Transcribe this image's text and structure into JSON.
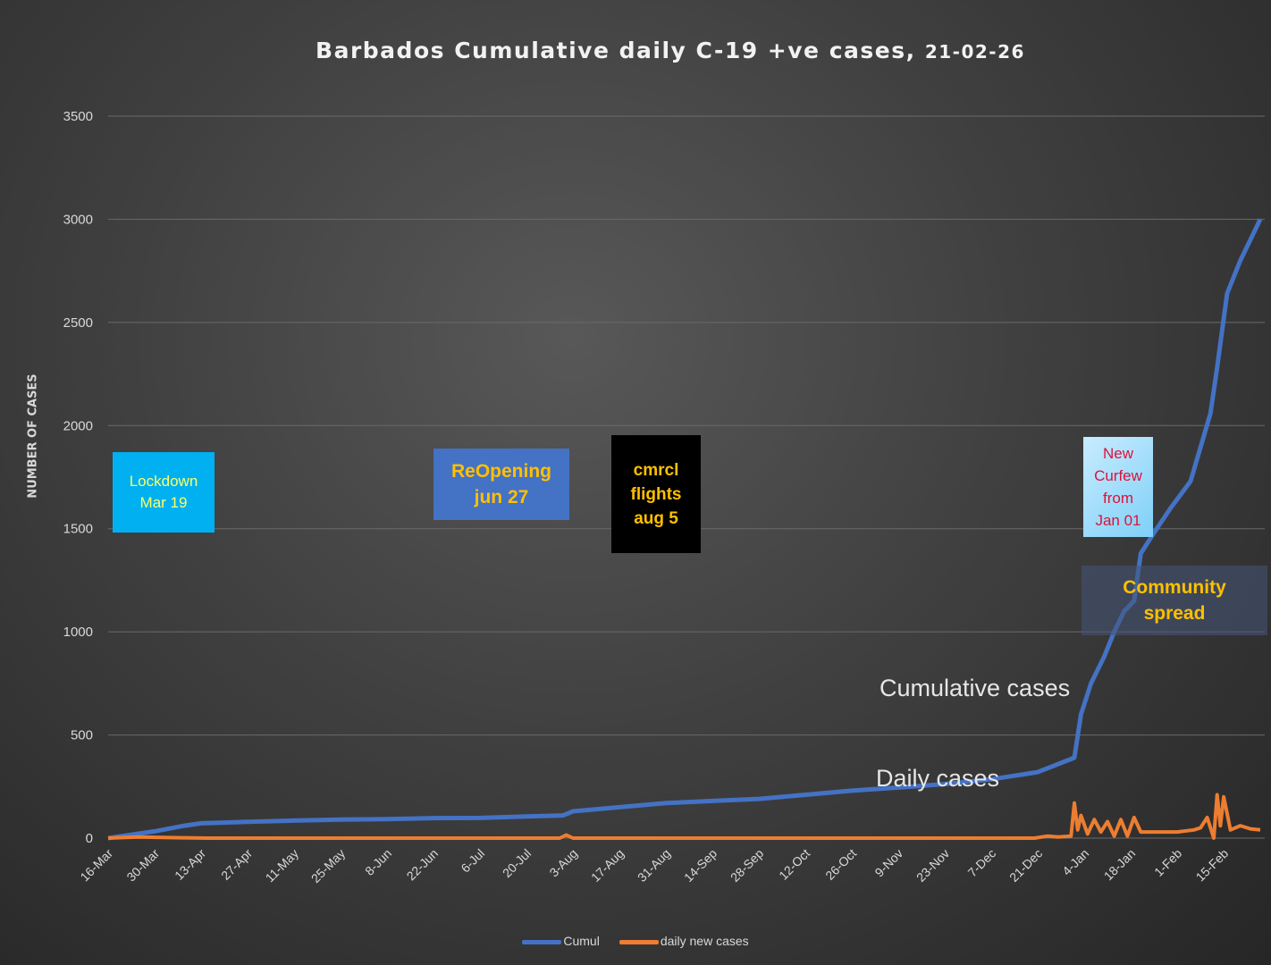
{
  "chart_data": {
    "type": "line",
    "title": "Barbados Cumulative daily C-19 +ve  cases,",
    "title_date": "21-02-26",
    "ylabel": "NUMBER OF CASES",
    "xlabel": "",
    "ylim": [
      0,
      3500
    ],
    "yticks": [
      0,
      500,
      1000,
      1500,
      2000,
      2500,
      3000,
      3500
    ],
    "xlim": [
      "2020-03-16",
      "2021-02-26"
    ],
    "xtick_labels": [
      "16-Mar",
      "30-Mar",
      "13-Apr",
      "27-Apr",
      "11-May",
      "25-May",
      "8-Jun",
      "22-Jun",
      "6-Jul",
      "20-Jul",
      "3-Aug",
      "17-Aug",
      "31-Aug",
      "14-Sep",
      "28-Sep",
      "12-Oct",
      "26-Oct",
      "9-Nov",
      "23-Nov",
      "7-Dec",
      "21-Dec",
      "4-Jan",
      "18-Jan",
      "1-Feb",
      "15-Feb"
    ],
    "grid": true,
    "legend_position": "bottom",
    "series": [
      {
        "name": "Cumul",
        "color": "#4472c4",
        "points": [
          [
            "2020-03-16",
            0
          ],
          [
            "2020-03-30",
            33
          ],
          [
            "2020-04-08",
            60
          ],
          [
            "2020-04-13",
            72
          ],
          [
            "2020-04-27",
            79
          ],
          [
            "2020-05-11",
            85
          ],
          [
            "2020-05-25",
            90
          ],
          [
            "2020-06-08",
            92
          ],
          [
            "2020-06-22",
            97
          ],
          [
            "2020-07-06",
            98
          ],
          [
            "2020-07-20",
            105
          ],
          [
            "2020-07-31",
            110
          ],
          [
            "2020-08-03",
            130
          ],
          [
            "2020-08-17",
            150
          ],
          [
            "2020-08-31",
            170
          ],
          [
            "2020-09-14",
            180
          ],
          [
            "2020-09-28",
            190
          ],
          [
            "2020-10-12",
            210
          ],
          [
            "2020-10-26",
            230
          ],
          [
            "2020-11-09",
            245
          ],
          [
            "2020-11-23",
            262
          ],
          [
            "2020-12-07",
            285
          ],
          [
            "2020-12-21",
            320
          ],
          [
            "2021-01-01",
            390
          ],
          [
            "2021-01-03",
            600
          ],
          [
            "2021-01-06",
            750
          ],
          [
            "2021-01-10",
            880
          ],
          [
            "2021-01-13",
            1000
          ],
          [
            "2021-01-16",
            1100
          ],
          [
            "2021-01-19",
            1150
          ],
          [
            "2021-01-21",
            1380
          ],
          [
            "2021-01-25",
            1480
          ],
          [
            "2021-01-30",
            1600
          ],
          [
            "2021-02-05",
            1730
          ],
          [
            "2021-02-09",
            1950
          ],
          [
            "2021-02-11",
            2060
          ],
          [
            "2021-02-13",
            2280
          ],
          [
            "2021-02-16",
            2640
          ],
          [
            "2021-02-20",
            2800
          ],
          [
            "2021-02-26",
            3000
          ]
        ]
      },
      {
        "name": "daily new cases",
        "color": "#ed7d31",
        "points": [
          [
            "2020-03-16",
            0
          ],
          [
            "2020-03-25",
            5
          ],
          [
            "2020-04-05",
            2
          ],
          [
            "2020-04-15",
            0
          ],
          [
            "2020-07-30",
            0
          ],
          [
            "2020-08-01",
            15
          ],
          [
            "2020-08-03",
            0
          ],
          [
            "2020-12-20",
            0
          ],
          [
            "2020-12-24",
            10
          ],
          [
            "2020-12-27",
            5
          ],
          [
            "2020-12-31",
            10
          ],
          [
            "2021-01-01",
            170
          ],
          [
            "2021-01-02",
            40
          ],
          [
            "2021-01-03",
            110
          ],
          [
            "2021-01-05",
            20
          ],
          [
            "2021-01-07",
            90
          ],
          [
            "2021-01-09",
            30
          ],
          [
            "2021-01-11",
            80
          ],
          [
            "2021-01-13",
            10
          ],
          [
            "2021-01-15",
            90
          ],
          [
            "2021-01-17",
            10
          ],
          [
            "2021-01-19",
            100
          ],
          [
            "2021-01-21",
            30
          ],
          [
            "2021-01-25",
            30
          ],
          [
            "2021-02-01",
            30
          ],
          [
            "2021-02-06",
            40
          ],
          [
            "2021-02-08",
            50
          ],
          [
            "2021-02-10",
            100
          ],
          [
            "2021-02-12",
            0
          ],
          [
            "2021-02-13",
            210
          ],
          [
            "2021-02-14",
            60
          ],
          [
            "2021-02-15",
            200
          ],
          [
            "2021-02-17",
            40
          ],
          [
            "2021-02-20",
            60
          ],
          [
            "2021-02-23",
            45
          ],
          [
            "2021-02-26",
            40
          ]
        ]
      }
    ],
    "annotations": {
      "lockdown": "Lockdown\nMar 19",
      "reopening": "ReOpening\njun 27",
      "flights": "cmrcl\nflights\naug 5",
      "curfew": "New\nCurfew\nfrom\nJan 01",
      "community": "Community\nspread",
      "cumulative_label": "Cumulative cases",
      "daily_label": "Daily cases"
    }
  }
}
